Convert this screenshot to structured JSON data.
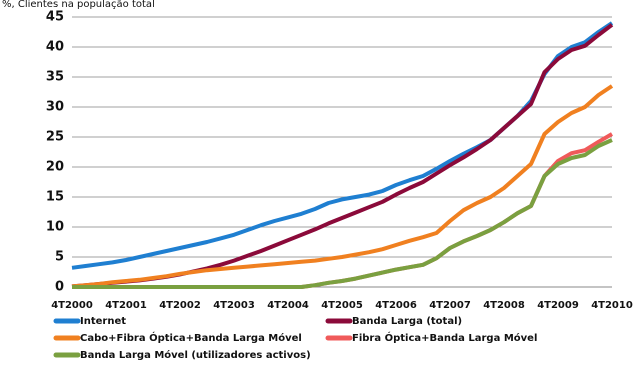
{
  "chart_data": {
    "type": "line",
    "title": "%, Clientes na população total",
    "categories": [
      "4T2000",
      null,
      null,
      null,
      "4T2001",
      null,
      null,
      null,
      "4T2002",
      null,
      null,
      null,
      "4T2003",
      null,
      null,
      null,
      "4T2004",
      null,
      null,
      null,
      "4T2005",
      null,
      null,
      null,
      "4T2006",
      null,
      null,
      null,
      "4T2007",
      null,
      null,
      null,
      "4T2008",
      null,
      null,
      null,
      "4T2009",
      null,
      null,
      null,
      "4T2010"
    ],
    "ylim": [
      0,
      45
    ],
    "yticks": [
      0,
      5,
      10,
      15,
      20,
      25,
      30,
      35,
      40,
      45
    ],
    "grid": true,
    "series": [
      {
        "name": "Internet",
        "color": "#1f7fd1",
        "values": [
          3.2,
          3.5,
          3.8,
          4.1,
          4.5,
          5.0,
          5.5,
          6.0,
          6.5,
          7.0,
          7.5,
          8.1,
          8.7,
          9.5,
          10.3,
          11.0,
          11.6,
          12.2,
          13.0,
          14.0,
          14.6,
          15.0,
          15.4,
          16.0,
          17.0,
          17.8,
          18.5,
          19.7,
          21.0,
          22.2,
          23.3,
          24.5,
          26.5,
          28.5,
          31.0,
          35.5,
          38.5,
          40.0,
          40.8,
          42.5,
          44.0
        ]
      },
      {
        "name": "Banda Larga (total)",
        "color": "#8b0a3a",
        "values": [
          0.1,
          0.3,
          0.5,
          0.7,
          0.9,
          1.1,
          1.4,
          1.7,
          2.1,
          2.6,
          3.1,
          3.7,
          4.4,
          5.2,
          6.0,
          6.9,
          7.8,
          8.7,
          9.6,
          10.6,
          11.5,
          12.4,
          13.3,
          14.2,
          15.4,
          16.5,
          17.5,
          18.9,
          20.3,
          21.6,
          23.0,
          24.5,
          26.5,
          28.5,
          30.5,
          35.8,
          38.0,
          39.5,
          40.2,
          42.0,
          43.7
        ]
      },
      {
        "name": "Cabo+Fibra Óptica+Banda Larga Móvel",
        "color": "#f08020",
        "values": [
          0.1,
          0.3,
          0.5,
          0.8,
          1.0,
          1.2,
          1.5,
          1.8,
          2.2,
          2.5,
          2.8,
          3.0,
          3.2,
          3.4,
          3.6,
          3.8,
          4.0,
          4.2,
          4.4,
          4.7,
          5.0,
          5.4,
          5.8,
          6.3,
          7.0,
          7.7,
          8.3,
          9.0,
          11.0,
          12.8,
          14.0,
          15.0,
          16.5,
          18.5,
          20.5,
          25.5,
          27.5,
          29.0,
          30.0,
          32.0,
          33.5
        ]
      },
      {
        "name": "Fibra Óptica+Banda Larga Móvel",
        "color": "#f05a5a",
        "values": [
          0,
          0,
          0,
          0,
          0,
          0,
          0,
          0,
          0,
          0,
          0,
          0,
          0,
          0,
          0,
          0,
          0,
          0,
          0.3,
          0.7,
          1.0,
          1.4,
          1.9,
          2.4,
          2.9,
          3.3,
          3.7,
          4.8,
          6.5,
          7.6,
          8.5,
          9.5,
          10.8,
          12.3,
          13.5,
          18.5,
          21.0,
          22.3,
          22.8,
          24.2,
          25.5
        ]
      },
      {
        "name": "Banda Larga Móvel (utilizadores activos)",
        "color": "#7aa040",
        "values": [
          0,
          0,
          0,
          0,
          0,
          0,
          0,
          0,
          0,
          0,
          0,
          0,
          0,
          0,
          0,
          0,
          0,
          0,
          0.3,
          0.7,
          1.0,
          1.4,
          1.9,
          2.4,
          2.9,
          3.3,
          3.7,
          4.8,
          6.5,
          7.6,
          8.5,
          9.5,
          10.8,
          12.3,
          13.5,
          18.5,
          20.5,
          21.5,
          22.0,
          23.5,
          24.5
        ]
      }
    ]
  }
}
